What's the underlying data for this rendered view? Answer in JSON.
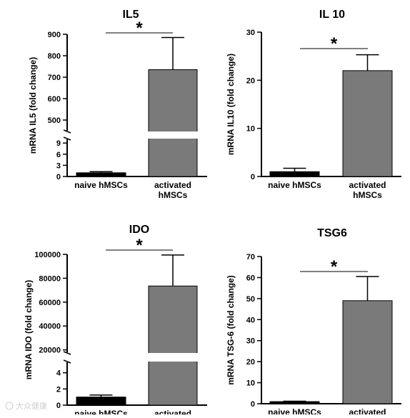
{
  "chart_data": [
    {
      "type": "bar",
      "title": "IL5",
      "ylabel": "mRNA IL5 (fold change)",
      "categories": [
        "naive hMSCs",
        "activated hMSCs"
      ],
      "values": [
        1,
        735
      ],
      "errors": [
        0.3,
        150
      ],
      "colors": [
        "#000000",
        "#7a7a7a"
      ],
      "significance": "*",
      "axis_break": true,
      "lower_ticks": [
        "0",
        "3",
        "6",
        "9"
      ],
      "upper_ticks": [
        "500",
        "600",
        "700",
        "800",
        "900"
      ]
    },
    {
      "type": "bar",
      "title": "IL 10",
      "ylabel": "mRNA IL10 (fold change)",
      "categories": [
        "naive hMSCs",
        "activated hMSCs"
      ],
      "values": [
        1,
        22
      ],
      "errors": [
        0.7,
        3.3
      ],
      "colors": [
        "#000000",
        "#7a7a7a"
      ],
      "significance": "*",
      "axis_break": false,
      "ylim": [
        0,
        30
      ],
      "ticks": [
        "0",
        "10",
        "20",
        "30"
      ]
    },
    {
      "type": "bar",
      "title": "IDO",
      "ylabel": "mRNA IDO (fold change)",
      "categories": [
        "naive hMSCs",
        "activated"
      ],
      "values": [
        1,
        73500
      ],
      "errors": [
        0.25,
        26000
      ],
      "colors": [
        "#000000",
        "#7a7a7a"
      ],
      "significance": "*",
      "axis_break": true,
      "lower_ticks": [
        "0",
        "2",
        "4"
      ],
      "upper_ticks": [
        "20000",
        "40000",
        "60000",
        "80000",
        "100000"
      ]
    },
    {
      "type": "bar",
      "title": "TSG6",
      "ylabel": "mRNA TSG-6 (fold change)",
      "categories": [
        "naive hMSCs",
        "activated"
      ],
      "values": [
        1,
        49
      ],
      "errors": [
        0.2,
        11.5
      ],
      "colors": [
        "#000000",
        "#7a7a7a"
      ],
      "significance": "*",
      "axis_break": false,
      "ylim": [
        0,
        70
      ],
      "ticks": [
        "0",
        "10",
        "20",
        "30",
        "40",
        "50",
        "60",
        "70"
      ]
    }
  ],
  "watermark": "大众健康"
}
